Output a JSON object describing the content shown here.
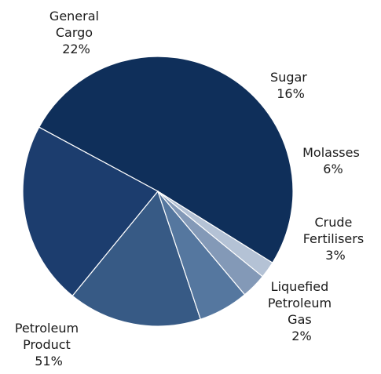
{
  "chart_data": {
    "type": "pie",
    "title": "",
    "legend": "none",
    "slices": [
      {
        "key": "petroleum",
        "lines": [
          "Petroleum",
          "Product"
        ],
        "pct_label": "51%",
        "value": 51,
        "color": "#0f2f5a"
      },
      {
        "key": "general",
        "lines": [
          "General",
          "Cargo"
        ],
        "pct_label": "22%",
        "value": 22,
        "color": "#1c3d6e"
      },
      {
        "key": "sugar",
        "lines": [
          "Sugar"
        ],
        "pct_label": "16%",
        "value": 16,
        "color": "#375a85"
      },
      {
        "key": "molasses",
        "lines": [
          "Molasses"
        ],
        "pct_label": "6%",
        "value": 6,
        "color": "#55779f"
      },
      {
        "key": "fertilisers",
        "lines": [
          "Crude",
          "Fertilisers"
        ],
        "pct_label": "3%",
        "value": 3,
        "color": "#8399b7"
      },
      {
        "key": "lpg",
        "lines": [
          "Liquefied",
          "Petroleum",
          "Gas"
        ],
        "pct_label": "2%",
        "value": 2,
        "color": "#b4c2d5"
      }
    ]
  }
}
